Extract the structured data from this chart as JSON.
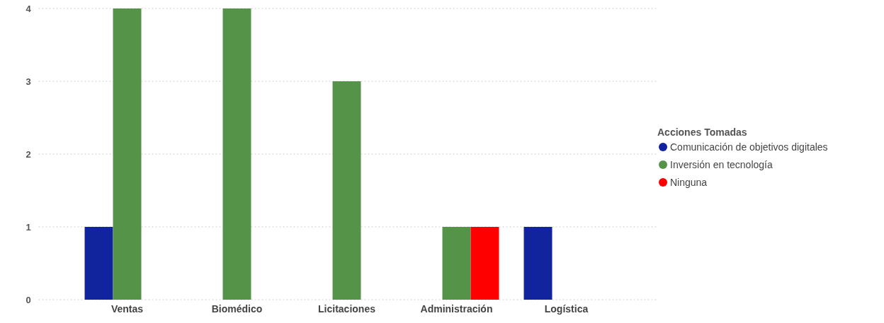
{
  "chart_data": {
    "type": "bar",
    "categories": [
      "Ventas",
      "Biomédico",
      "Licitaciones",
      "Administración",
      "Logística"
    ],
    "series": [
      {
        "name": "Comunicación de objetivos digitales",
        "color": "#12239e",
        "values": [
          1,
          null,
          null,
          null,
          1
        ]
      },
      {
        "name": "Inversión en tecnología",
        "color": "#559348",
        "values": [
          4,
          4,
          3,
          1,
          null
        ]
      },
      {
        "name": "Ninguna",
        "color": "#ff0000",
        "values": [
          null,
          null,
          null,
          1,
          null
        ]
      }
    ],
    "legend_title": "Acciones Tomadas",
    "legend": "right",
    "ylim": [
      0,
      4
    ],
    "yticks": [
      0,
      1,
      2,
      3,
      4
    ],
    "grid": "y"
  }
}
